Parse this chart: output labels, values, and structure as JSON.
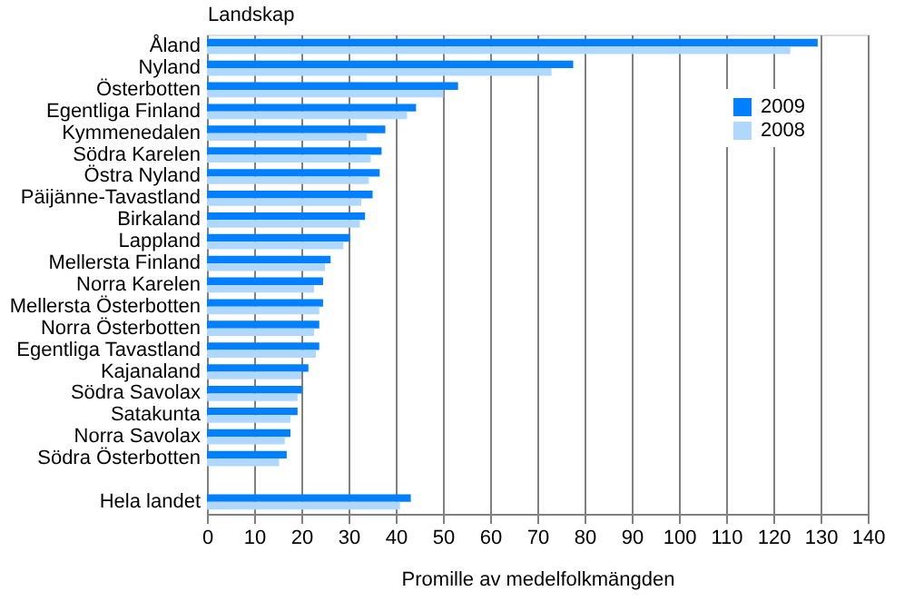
{
  "chart_data": {
    "type": "bar",
    "orientation": "horizontal",
    "ylabel": "Landskap",
    "xlabel": "Promille av medelfolkmängden",
    "categories": [
      "Åland",
      "Nyland",
      "Österbotten",
      "Egentliga Finland",
      "Kymmenedalen",
      "Södra Karelen",
      "Östra Nyland",
      "Päijänne-Tavastland",
      "Birkaland",
      "Lappland",
      "Mellersta Finland",
      "Norra Karelen",
      "Mellersta Österbotten",
      "Norra Österbotten",
      "Egentliga Tavastland",
      "Kajanaland",
      "Södra Savolax",
      "Satakunta",
      "Norra Savolax",
      "Södra Österbotten",
      null,
      "Hela landet"
    ],
    "series": [
      {
        "name": "2009",
        "color": "#0080ff",
        "values": [
          129.4,
          77.6,
          53.2,
          44.3,
          37.8,
          37.0,
          36.6,
          35.1,
          33.5,
          30.3,
          26.2,
          24.6,
          24.6,
          23.8,
          23.8,
          21.5,
          20.2,
          19.2,
          17.7,
          16.9,
          null,
          43.2
        ]
      },
      {
        "name": "2008",
        "color": "#b0d8ff",
        "values": [
          123.6,
          73.0,
          50.1,
          42.4,
          33.9,
          34.7,
          34.3,
          32.7,
          32.4,
          28.9,
          25.0,
          22.7,
          23.8,
          22.7,
          23.1,
          20.0,
          19.2,
          17.7,
          16.5,
          15.3,
          null,
          40.9
        ]
      }
    ],
    "xlim": [
      0,
      140
    ],
    "xticks": [
      0,
      10,
      20,
      30,
      40,
      50,
      60,
      70,
      80,
      90,
      100,
      110,
      120,
      130,
      140
    ],
    "grid": "x",
    "legend": "top right"
  }
}
